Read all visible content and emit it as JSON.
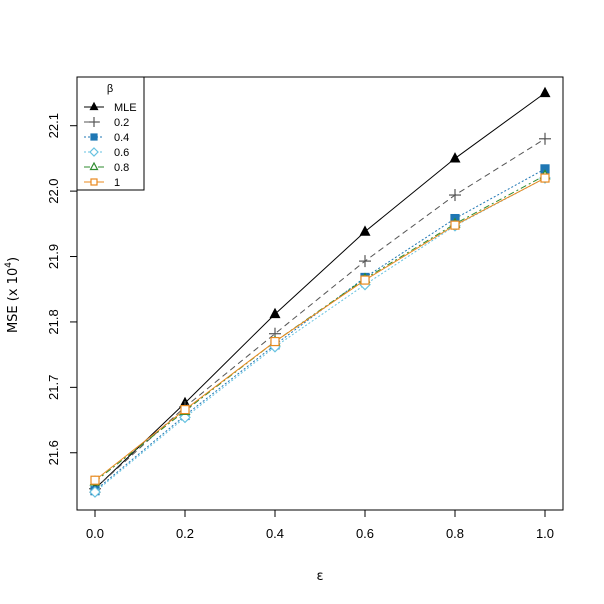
{
  "chart_data": {
    "type": "line",
    "xlabel": "ε",
    "ylabel": "MSE (x 10",
    "ylabel_exp": "4",
    "ylabel_close": ")",
    "x": [
      0.0,
      0.2,
      0.4,
      0.6,
      0.8,
      1.0
    ],
    "xlim": [
      0.0,
      1.0
    ],
    "ylim": [
      21.54,
      22.15
    ],
    "xticks": [
      "0.0",
      "0.2",
      "0.4",
      "0.6",
      "0.8",
      "1.0"
    ],
    "yticks": [
      "21.6",
      "21.7",
      "21.8",
      "21.9",
      "22.0",
      "22.1"
    ],
    "grid": false,
    "legend": {
      "title": "β",
      "placement": "top-left"
    },
    "series": [
      {
        "name": "MLE",
        "color": "#000000",
        "dash": "solid",
        "marker": "triangle-filled",
        "values": [
          21.545,
          21.676,
          21.812,
          21.938,
          22.05,
          22.15
        ]
      },
      {
        "name": "0.2",
        "color": "#555555",
        "dash": "dashed",
        "marker": "plus",
        "values": [
          21.545,
          21.67,
          21.782,
          21.893,
          21.994,
          22.08
        ]
      },
      {
        "name": "0.4",
        "color": "#1f77b4",
        "dash": "dotted",
        "marker": "square-filled",
        "values": [
          21.542,
          21.657,
          21.765,
          21.868,
          21.958,
          22.034
        ]
      },
      {
        "name": "0.6",
        "color": "#66c2e0",
        "dash": "dotted",
        "marker": "diamond-open",
        "values": [
          21.54,
          21.654,
          21.762,
          21.857,
          21.947,
          22.02
        ]
      },
      {
        "name": "0.8",
        "color": "#2e8b2e",
        "dash": "dashdot",
        "marker": "triangle-open",
        "values": [
          21.556,
          21.664,
          21.77,
          21.866,
          21.95,
          22.024
        ]
      },
      {
        "name": "1",
        "color": "#e8891e",
        "dash": "solid",
        "marker": "square-open",
        "values": [
          21.558,
          21.666,
          21.77,
          21.864,
          21.948,
          22.02
        ]
      }
    ]
  }
}
